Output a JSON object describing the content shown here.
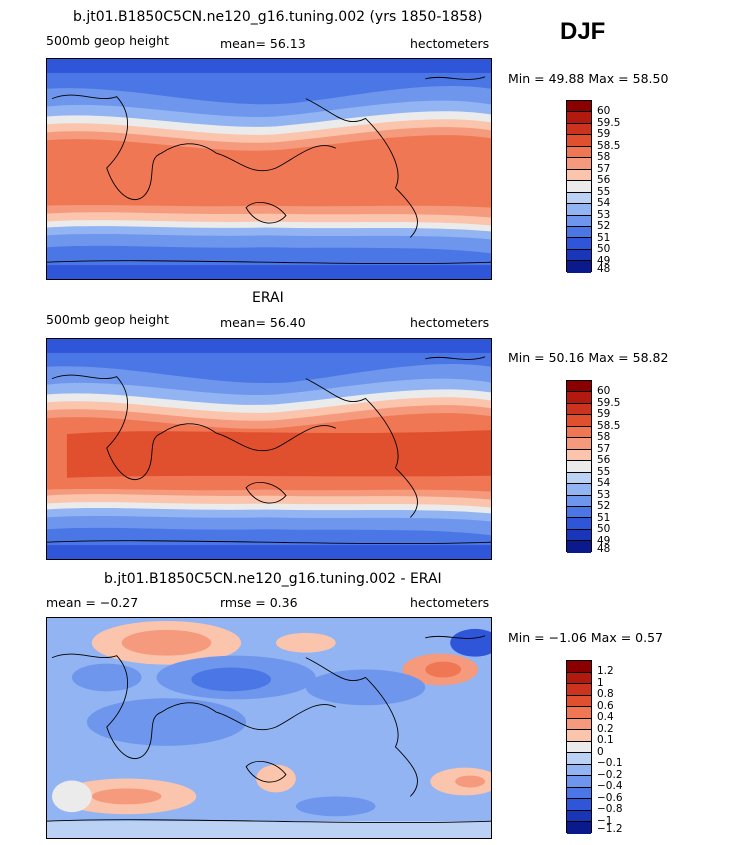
{
  "season": "DJF",
  "panels": [
    {
      "title": "b.jt01.B1850C5CN.ne120_g16.tuning.002 (yrs 1850-1858)",
      "left_label": "500mb geop height",
      "center_label": "mean=  56.13",
      "units": "hectometers",
      "minmax": "Min =  49.88 Max =  58.50",
      "levels": [
        "60",
        "59.5",
        "59",
        "58.5",
        "58",
        "57",
        "56",
        "55",
        "54",
        "53",
        "52",
        "51",
        "50",
        "49",
        "48"
      ],
      "colors": [
        "#8a0000",
        "#b21a0f",
        "#cc331f",
        "#e0502e",
        "#ef7754",
        "#f59a7c",
        "#fbc4ad",
        "#ebebeb",
        "#bcd2f5",
        "#92b4f2",
        "#6e96ec",
        "#4b76e6",
        "#2f55d9",
        "#1935b8",
        "#0a1a8c"
      ]
    },
    {
      "title": "ERAI",
      "left_label": "500mb geop height",
      "center_label": "mean=  56.40",
      "units": "hectometers",
      "minmax": "Min =  50.16 Max =  58.82",
      "levels": [
        "60",
        "59.5",
        "59",
        "58.5",
        "58",
        "57",
        "56",
        "55",
        "54",
        "53",
        "52",
        "51",
        "50",
        "49",
        "48"
      ],
      "colors": [
        "#8a0000",
        "#b21a0f",
        "#cc331f",
        "#e0502e",
        "#ef7754",
        "#f59a7c",
        "#fbc4ad",
        "#ebebeb",
        "#bcd2f5",
        "#92b4f2",
        "#6e96ec",
        "#4b76e6",
        "#2f55d9",
        "#1935b8",
        "#0a1a8c"
      ]
    },
    {
      "title": "b.jt01.B1850C5CN.ne120_g16.tuning.002 - ERAI",
      "left_label": "mean =  −0.27",
      "center_label": "rmse =    0.36",
      "units": "hectometers",
      "minmax": "Min =  −1.06 Max =   0.57",
      "levels": [
        "1.2",
        "1",
        "0.8",
        "0.6",
        "0.4",
        "0.2",
        "0.1",
        "0",
        "−0.1",
        "−0.2",
        "−0.4",
        "−0.6",
        "−0.8",
        "−1",
        "−1.2"
      ],
      "colors": [
        "#8a0000",
        "#b21a0f",
        "#cc331f",
        "#e0502e",
        "#ef7754",
        "#f59a7c",
        "#fbc4ad",
        "#ebebeb",
        "#bcd2f5",
        "#92b4f2",
        "#6e96ec",
        "#4b76e6",
        "#2f55d9",
        "#1935b8",
        "#0a1a8c"
      ]
    }
  ],
  "map_fill": {
    "deep_blue": "#2f55d9",
    "mid_blue": "#6e96ec",
    "light_blue": "#92b4f2",
    "pale": "#ebebeb",
    "salmon": "#f59a7c",
    "orange": "#ef7754",
    "red": "#e0502e"
  }
}
